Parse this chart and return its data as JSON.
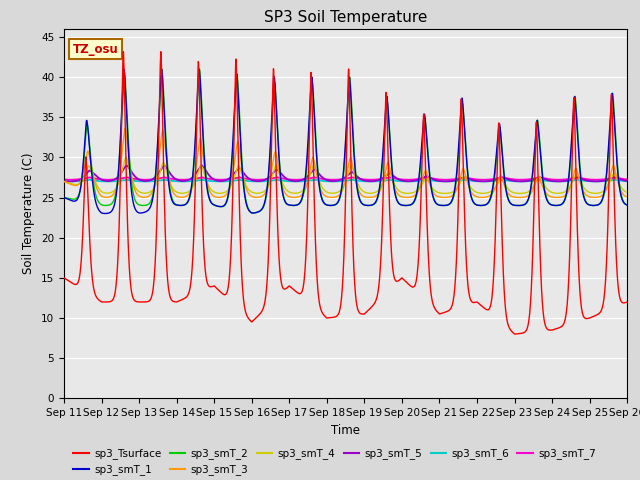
{
  "title": "SP3 Soil Temperature",
  "ylabel": "Soil Temperature (C)",
  "xlabel": "Time",
  "annotation": "TZ_osu",
  "ylim": [
    0,
    46
  ],
  "yticks": [
    0,
    5,
    10,
    15,
    20,
    25,
    30,
    35,
    40,
    45
  ],
  "x_tick_labels": [
    "Sep 11",
    "Sep 12",
    "Sep 13",
    "Sep 14",
    "Sep 15",
    "Sep 16",
    "Sep 17",
    "Sep 18",
    "Sep 19",
    "Sep 20",
    "Sep 21",
    "Sep 22",
    "Sep 23",
    "Sep 24",
    "Sep 25",
    "Sep 26"
  ],
  "background_color": "#d9d9d9",
  "plot_bg_color": "#e8e8e8",
  "series_colors": {
    "sp3_Tsurface": "#ff0000",
    "sp3_smT_1": "#0000cc",
    "sp3_smT_2": "#00cc00",
    "sp3_smT_3": "#ff9900",
    "sp3_smT_4": "#cccc00",
    "sp3_smT_5": "#9900cc",
    "sp3_smT_6": "#00cccc",
    "sp3_smT_7": "#ff00cc"
  },
  "legend_order": [
    "sp3_Tsurface",
    "sp3_smT_1",
    "sp3_smT_2",
    "sp3_smT_3",
    "sp3_smT_4",
    "sp3_smT_5",
    "sp3_smT_6",
    "sp3_smT_7"
  ]
}
